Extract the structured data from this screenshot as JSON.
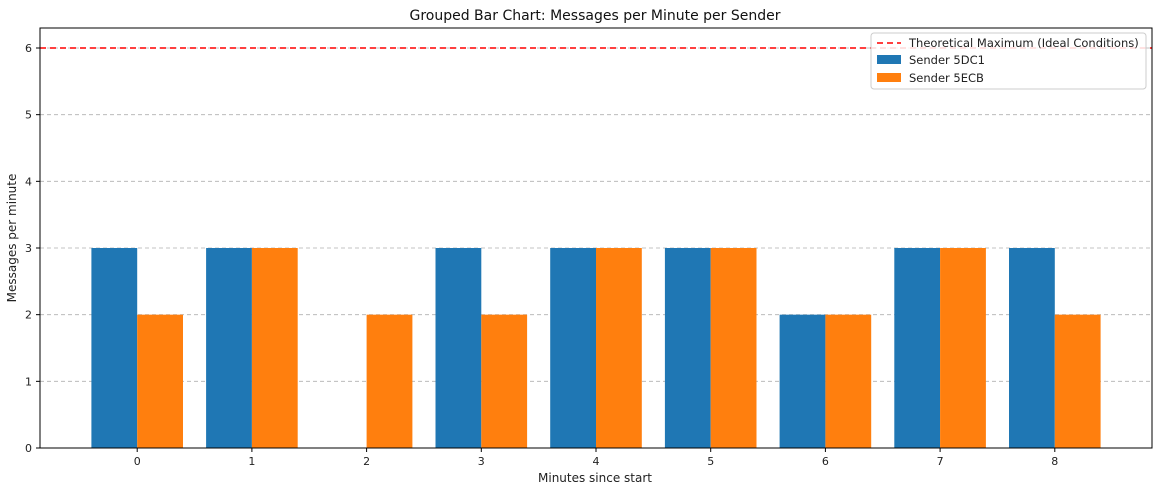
{
  "chart_data": {
    "type": "bar",
    "title": "Grouped Bar Chart: Messages per Minute per Sender",
    "xlabel": "Minutes since start",
    "ylabel": "Messages per minute",
    "categories": [
      "0",
      "1",
      "2",
      "3",
      "4",
      "5",
      "6",
      "7",
      "8"
    ],
    "series": [
      {
        "name": "Sender 5DC1",
        "color": "#1f77b4",
        "values": [
          3,
          3,
          0,
          3,
          3,
          3,
          2,
          3,
          3
        ]
      },
      {
        "name": "Sender 5ECB",
        "color": "#ff7f0e",
        "values": [
          2,
          3,
          2,
          2,
          3,
          3,
          2,
          3,
          2
        ]
      }
    ],
    "reference_line": {
      "name": "Theoretical Maximum (Ideal Conditions)",
      "value": 6,
      "color": "#ff0000",
      "style": "dashed"
    },
    "ylim": [
      0,
      6.3
    ],
    "yticks": [
      "0",
      "1",
      "2",
      "3",
      "4",
      "5",
      "6"
    ],
    "grid": "y-dashed",
    "legend_position": "top-right"
  }
}
